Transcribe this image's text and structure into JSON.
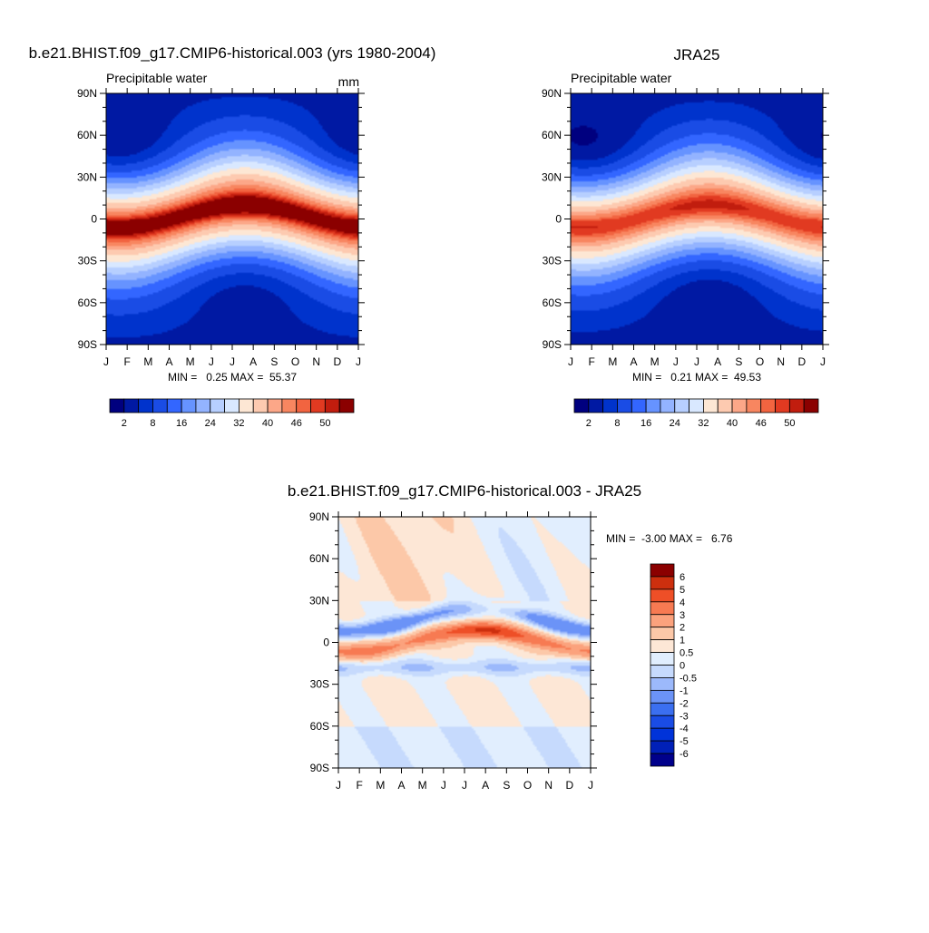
{
  "colors": {
    "seq_palette": [
      "#00007f",
      "#0019a3",
      "#0033cc",
      "#1a4ce5",
      "#3366ff",
      "#6693ff",
      "#93b3ff",
      "#b7cfff",
      "#d9e8ff",
      "#fde7d4",
      "#fdcab0",
      "#fca788",
      "#f88660",
      "#f26440",
      "#e13a21",
      "#c11d0e",
      "#8b0000"
    ],
    "diff_palette": [
      "#00008b",
      "#0020b8",
      "#0033d9",
      "#1a4ce5",
      "#3b6ff0",
      "#6b93f7",
      "#9cb9fb",
      "#c6dafd",
      "#e1eefe",
      "#fde7d6",
      "#fcc8a8",
      "#fba27d",
      "#f77a52",
      "#ee4f27",
      "#cd2f0e",
      "#8b0000"
    ]
  },
  "chart_data": [
    {
      "type": "heatmap",
      "title": "b.e21.BHIST.f09_g17.CMIP6-historical.003 (yrs 1980-2004)",
      "left_label": "Precipitable water",
      "units": "mm",
      "x_ticks": [
        "J",
        "F",
        "M",
        "A",
        "M",
        "J",
        "J",
        "A",
        "S",
        "O",
        "N",
        "D",
        "J"
      ],
      "y_ticks": [
        "90N",
        "60N",
        "30N",
        "0",
        "30S",
        "60S",
        "90S"
      ],
      "stats": "MIN =   0.25 MAX =  55.37",
      "min": 0.25,
      "max": 55.37,
      "colorbar_levels": [
        2,
        5,
        8,
        12,
        16,
        20,
        24,
        28,
        32,
        36,
        40,
        43,
        46,
        48,
        50,
        52
      ],
      "colorbar_tick_labels": [
        "2",
        "8",
        "16",
        "24",
        "32",
        "40",
        "46",
        "50"
      ]
    },
    {
      "type": "heatmap",
      "title": "JRA25",
      "left_label": "Precipitable water",
      "x_ticks": [
        "J",
        "F",
        "M",
        "A",
        "M",
        "J",
        "J",
        "A",
        "S",
        "O",
        "N",
        "D",
        "J"
      ],
      "y_ticks": [
        "90N",
        "60N",
        "30N",
        "0",
        "30S",
        "60S",
        "90S"
      ],
      "stats": "MIN =   0.21 MAX =  49.53",
      "min": 0.21,
      "max": 49.53,
      "colorbar_levels": [
        2,
        5,
        8,
        12,
        16,
        20,
        24,
        28,
        32,
        36,
        40,
        43,
        46,
        48,
        50,
        52
      ],
      "colorbar_tick_labels": [
        "2",
        "8",
        "16",
        "24",
        "32",
        "40",
        "46",
        "50"
      ]
    },
    {
      "type": "heatmap",
      "title": "b.e21.BHIST.f09_g17.CMIP6-historical.003 - JRA25",
      "x_ticks": [
        "J",
        "F",
        "M",
        "A",
        "M",
        "J",
        "J",
        "A",
        "S",
        "O",
        "N",
        "D",
        "J"
      ],
      "y_ticks": [
        "90N",
        "60N",
        "30N",
        "0",
        "30S",
        "60S",
        "90S"
      ],
      "stats": "MIN =  -3.00 MAX =   6.76",
      "min": -3.0,
      "max": 6.76,
      "colorbar_levels": [
        -6,
        -5,
        -4,
        -3,
        -2,
        -1,
        -0.5,
        0,
        0.5,
        1,
        2,
        3,
        4,
        5,
        6
      ],
      "colorbar_tick_labels": [
        "6",
        "5",
        "4",
        "3",
        "2",
        "1",
        "0.5",
        "0",
        "-0.5",
        "-1",
        "-2",
        "-3",
        "-4",
        "-5",
        "-6"
      ]
    }
  ]
}
